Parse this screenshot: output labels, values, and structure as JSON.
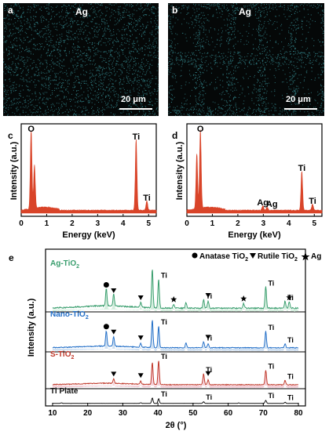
{
  "panels": {
    "a": {
      "label": "a",
      "element": "Ag",
      "scale": "20 μm"
    },
    "b": {
      "label": "b",
      "element": "Ag",
      "scale": "20 μm"
    },
    "c": {
      "label": "c",
      "xlabel": "Energy (keV)",
      "ylabel": "Intensity (a.u.)",
      "xticks": [
        "0",
        "1",
        "2",
        "3",
        "4",
        "5"
      ],
      "peak_labels": [
        "O",
        "Ti",
        "Ti"
      ]
    },
    "d": {
      "label": "d",
      "xlabel": "Energy (keV)",
      "ylabel": "Intensity (a.u.)",
      "xticks": [
        "0",
        "1",
        "2",
        "3",
        "4",
        "5"
      ],
      "peak_labels": [
        "O",
        "Ag",
        "Ag",
        "Ti",
        "Ti"
      ]
    },
    "e": {
      "label": "e",
      "xlabel": "2θ (°)",
      "ylabel": "Intensity (a.u.)",
      "xticks": [
        "10",
        "20",
        "30",
        "40",
        "50",
        "60",
        "70",
        "80"
      ],
      "legend": {
        "anatase": "Anatase TiO",
        "anatase_sub": "2",
        "rutile": "Rutile TiO",
        "rutile_sub": "2",
        "ag": "Ag"
      },
      "traces": [
        {
          "name": "Ag-TiO",
          "sub": "2",
          "color": "#3a9e6e",
          "fill": "#c9ead6"
        },
        {
          "name": "Nano-TiO",
          "sub": "2",
          "color": "#2470c8",
          "fill": "#c3d8ef"
        },
        {
          "name": "S-TiO",
          "sub": "2",
          "color": "#c0392b",
          "fill": "#f3c4cf"
        },
        {
          "name": "Ti Plate",
          "sub": "",
          "color": "#111111",
          "fill": "#ffffff"
        }
      ],
      "ti_label": "Ti"
    }
  },
  "chart_data": [
    {
      "type": "line",
      "panel": "c",
      "title": "",
      "xlabel": "Energy (keV)",
      "ylabel": "Intensity (a.u.)",
      "xlim": [
        0,
        5.3
      ],
      "peaks": [
        {
          "x": 0.39,
          "y": 100,
          "label": "O"
        },
        {
          "x": 0.52,
          "y": 55,
          "label": ""
        },
        {
          "x": 4.51,
          "y": 90,
          "label": "Ti"
        },
        {
          "x": 4.93,
          "y": 12,
          "label": "Ti"
        }
      ]
    },
    {
      "type": "line",
      "panel": "d",
      "title": "",
      "xlabel": "Energy (keV)",
      "ylabel": "Intensity (a.u.)",
      "xlim": [
        0,
        5.3
      ],
      "peaks": [
        {
          "x": 0.39,
          "y": 70,
          "label": ""
        },
        {
          "x": 0.53,
          "y": 100,
          "label": "O"
        },
        {
          "x": 2.98,
          "y": 6,
          "label": "Ag"
        },
        {
          "x": 3.15,
          "y": 4,
          "label": "Ag"
        },
        {
          "x": 4.51,
          "y": 50,
          "label": "Ti"
        },
        {
          "x": 4.93,
          "y": 8,
          "label": "Ti"
        }
      ]
    },
    {
      "type": "line",
      "panel": "e",
      "title": "",
      "xlabel": "2θ (°)",
      "ylabel": "Intensity (a.u.)",
      "xlim": [
        8,
        82
      ],
      "series": [
        {
          "name": "Ag-TiO2",
          "peaks": [
            [
              25.3,
              45
            ],
            [
              27.4,
              30
            ],
            [
              35.1,
              12
            ],
            [
              38.4,
              100
            ],
            [
              40.2,
              75
            ],
            [
              44.5,
              10
            ],
            [
              48.0,
              14
            ],
            [
              53.0,
              22
            ],
            [
              54.3,
              18
            ],
            [
              64.4,
              12
            ],
            [
              70.7,
              55
            ],
            [
              76.2,
              18
            ],
            [
              77.4,
              15
            ]
          ]
        },
        {
          "name": "Nano-TiO2",
          "peaks": [
            [
              25.3,
              55
            ],
            [
              27.4,
              35
            ],
            [
              35.1,
              14
            ],
            [
              38.4,
              100
            ],
            [
              40.2,
              80
            ],
            [
              48.0,
              18
            ],
            [
              53.0,
              22
            ],
            [
              54.3,
              16
            ],
            [
              70.7,
              60
            ],
            [
              76.2,
              14
            ]
          ]
        },
        {
          "name": "S-TiO2",
          "peaks": [
            [
              27.4,
              18
            ],
            [
              35.1,
              12
            ],
            [
              38.4,
              90
            ],
            [
              40.2,
              100
            ],
            [
              53.0,
              45
            ],
            [
              54.3,
              20
            ],
            [
              70.7,
              60
            ],
            [
              76.2,
              18
            ]
          ]
        },
        {
          "name": "Ti Plate",
          "peaks": [
            [
              12.5,
              10
            ],
            [
              35.1,
              12
            ],
            [
              38.4,
              100
            ],
            [
              40.2,
              85
            ],
            [
              53.0,
              30
            ],
            [
              63.0,
              8
            ],
            [
              70.7,
              55
            ],
            [
              76.2,
              20
            ]
          ]
        }
      ]
    }
  ]
}
